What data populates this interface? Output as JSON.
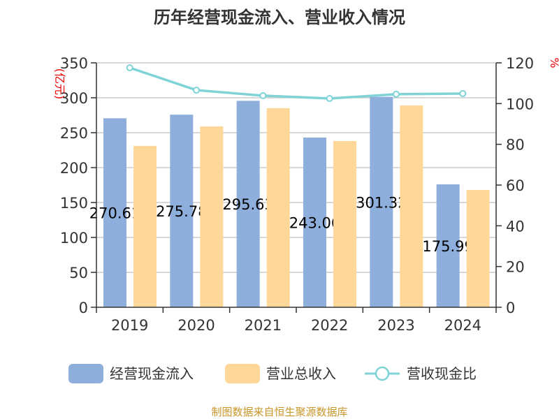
{
  "chart_data": {
    "type": "bar",
    "title": "历年经营现金流入、营业收入情况",
    "categories": [
      "2019",
      "2020",
      "2021",
      "2022",
      "2023",
      "2024"
    ],
    "left_axis": {
      "label": "(亿元)",
      "ylim": [
        0,
        350
      ],
      "ticks": [
        0,
        50,
        100,
        150,
        200,
        250,
        300,
        350
      ]
    },
    "right_axis": {
      "label": "%",
      "ylim": [
        0,
        120
      ],
      "ticks": [
        0,
        20,
        40,
        60,
        80,
        100,
        120
      ]
    },
    "series": [
      {
        "name": "经营现金流入",
        "type": "bar",
        "axis": "left",
        "color": "#8eaedb",
        "values": [
          270.61,
          275.78,
          295.63,
          243.06,
          301.32,
          175.99
        ],
        "labels": [
          "270.61",
          "275.78",
          "295.63",
          "243.06",
          "301.32",
          "175.99"
        ]
      },
      {
        "name": "营业总收入",
        "type": "bar",
        "axis": "left",
        "color": "#ffd899",
        "values": [
          231,
          259,
          285,
          238,
          289,
          168
        ]
      },
      {
        "name": "营收现金比",
        "type": "line",
        "axis": "right",
        "color": "#7fd3d6",
        "values": [
          117.6,
          106.6,
          103.9,
          102.5,
          104.6,
          104.9
        ]
      }
    ],
    "grid": true,
    "legend": "bottom"
  },
  "footer": "制图数据来自恒生聚源数据库"
}
